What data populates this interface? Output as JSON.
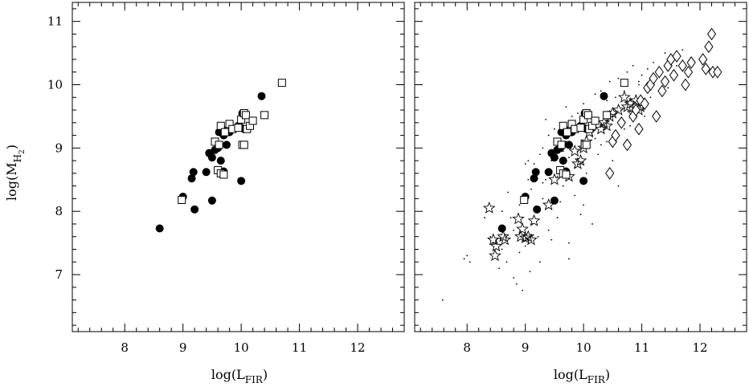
{
  "chart_data": [
    {
      "type": "scatter",
      "title": "",
      "xlabel": "log(L",
      "xlabel_sub": "FIR",
      "xlabel_close": ")",
      "ylabel": "log(M",
      "ylabel_sub": "H",
      "ylabel_subsub": "2",
      "ylabel_close": ")",
      "xlim": [
        7.1,
        12.8
      ],
      "ylim": [
        6.1,
        11.3
      ],
      "xticks": [
        "8",
        "9",
        "10",
        "11",
        "12"
      ],
      "yticks": [
        "7",
        "8",
        "9",
        "10",
        "11"
      ],
      "grid": false,
      "series": [
        {
          "marker": "filled-circle",
          "x": [
            8.6,
            9.0,
            9.15,
            9.18,
            9.2,
            9.4,
            9.45,
            9.5,
            9.5,
            9.55,
            9.6,
            9.62,
            9.65,
            9.67,
            9.7,
            9.7,
            9.75,
            9.8,
            9.95,
            10.0,
            10.0,
            10.02,
            10.05,
            10.35
          ],
          "y": [
            7.73,
            8.23,
            8.52,
            8.62,
            8.03,
            8.62,
            8.92,
            8.17,
            8.85,
            8.97,
            9.0,
            9.25,
            8.8,
            9.3,
            9.2,
            8.63,
            9.05,
            9.25,
            9.35,
            9.32,
            8.48,
            9.55,
            9.3,
            9.82
          ]
        },
        {
          "marker": "open-square",
          "x": [
            8.98,
            9.55,
            9.6,
            9.62,
            9.65,
            9.65,
            9.7,
            9.72,
            9.8,
            9.85,
            9.95,
            10.0,
            10.02,
            10.05,
            10.05,
            10.08,
            10.1,
            10.15,
            10.2,
            10.4,
            10.7
          ],
          "y": [
            8.18,
            9.1,
            8.65,
            9.05,
            8.6,
            9.35,
            8.58,
            9.25,
            9.38,
            9.3,
            9.32,
            9.45,
            9.05,
            9.05,
            9.55,
            9.52,
            9.3,
            9.35,
            9.43,
            9.52,
            10.03
          ]
        }
      ]
    },
    {
      "type": "scatter",
      "title": "",
      "xlabel": "log(L",
      "xlabel_sub": "FIR",
      "xlabel_close": ")",
      "xlim": [
        7.1,
        12.8
      ],
      "ylim": [
        6.1,
        11.3
      ],
      "xticks": [
        "8",
        "9",
        "10",
        "11",
        "12"
      ],
      "grid": false,
      "series": [
        {
          "marker": "dot",
          "x": [
            7.58,
            7.95,
            8.0,
            8.05,
            8.3,
            8.4,
            8.45,
            8.5,
            8.6,
            8.6,
            8.68,
            8.75,
            8.8,
            8.85,
            8.9,
            8.9,
            8.95,
            9.0,
            9.05,
            9.08,
            9.1,
            9.12,
            9.15,
            9.2,
            9.22,
            9.25,
            9.3,
            9.3,
            9.35,
            9.4,
            9.4,
            9.45,
            9.5,
            9.55,
            9.6,
            9.65,
            9.7,
            9.75,
            9.75,
            9.8,
            9.85,
            9.9,
            9.95,
            10.0,
            10.05,
            10.1,
            10.15,
            10.2,
            10.25,
            10.3,
            10.35,
            10.4,
            10.45,
            10.5,
            10.55,
            10.6,
            10.65,
            10.7,
            10.75,
            10.8,
            10.85,
            10.9,
            10.95,
            11.0,
            11.1,
            11.2,
            11.3,
            11.4,
            11.5,
            11.6,
            11.7,
            9.0,
            9.3,
            9.6,
            9.9,
            10.2,
            10.5,
            10.8,
            8.7,
            9.15,
            9.55,
            9.85,
            10.3,
            10.7,
            11.05,
            9.45,
            9.95,
            10.45,
            8.95,
            9.25,
            9.75,
            10.15,
            10.6,
            11.15,
            11.45,
            10.0,
            9.7,
            10.4,
            8.55,
            8.8,
            9.05,
            9.35,
            9.65,
            10.95,
            11.25
          ],
          "y": [
            6.6,
            7.25,
            7.3,
            7.2,
            7.9,
            7.6,
            7.5,
            7.55,
            7.4,
            8.0,
            7.2,
            7.9,
            7.7,
            6.85,
            8.1,
            7.35,
            8.2,
            7.45,
            8.5,
            7.05,
            8.35,
            7.8,
            8.75,
            8.6,
            7.6,
            8.9,
            9.0,
            8.2,
            8.5,
            7.7,
            9.2,
            8.8,
            9.3,
            7.9,
            9.4,
            8.4,
            9.1,
            7.25,
            8.85,
            9.5,
            8.7,
            9.55,
            9.0,
            9.7,
            8.6,
            9.6,
            9.2,
            9.85,
            8.9,
            9.9,
            9.4,
            9.1,
            10.05,
            9.5,
            9.8,
            10.1,
            9.6,
            9.9,
            10.2,
            9.75,
            10.3,
            9.65,
            10.0,
            10.15,
            10.25,
            10.35,
            10.2,
            10.5,
            10.4,
            10.3,
            10.55,
            8.75,
            8.45,
            8.15,
            8.95,
            9.15,
            8.8,
            9.35,
            8.3,
            8.05,
            8.55,
            8.25,
            9.05,
            9.3,
            9.5,
            7.55,
            7.95,
            8.6,
            6.75,
            7.2,
            7.5,
            7.8,
            8.4,
            9.8,
            9.95,
            8.1,
            9.65,
            9.75,
            7.1,
            6.95,
            8.8,
            9.45,
            8.95,
            10.05,
            9.55
          ]
        },
        {
          "marker": "open-star",
          "x": [
            8.38,
            8.45,
            8.48,
            8.5,
            8.62,
            8.65,
            8.88,
            8.92,
            8.95,
            9.0,
            9.05,
            9.1,
            9.15,
            9.4,
            9.5,
            9.75,
            9.85,
            9.9,
            9.95,
            10.0,
            10.05,
            10.1,
            10.3,
            10.35,
            10.4,
            10.45,
            10.5,
            10.6,
            10.7,
            10.75,
            10.8,
            10.85,
            10.9,
            10.95,
            10.98
          ],
          "y": [
            8.05,
            7.55,
            7.3,
            7.45,
            7.6,
            7.55,
            7.88,
            7.6,
            7.72,
            7.58,
            7.6,
            7.55,
            7.85,
            8.1,
            8.5,
            8.55,
            8.95,
            8.75,
            8.8,
            9.0,
            9.1,
            9.25,
            9.3,
            9.4,
            9.35,
            9.5,
            9.55,
            9.6,
            9.8,
            9.65,
            9.7,
            9.55,
            9.75,
            9.6,
            9.65
          ]
        },
        {
          "marker": "open-diamond",
          "x": [
            10.45,
            10.5,
            10.55,
            10.65,
            10.75,
            10.85,
            10.9,
            10.95,
            10.98,
            11.05,
            11.1,
            11.15,
            11.2,
            11.25,
            11.3,
            11.35,
            11.4,
            11.45,
            11.5,
            11.55,
            11.6,
            11.7,
            11.75,
            11.8,
            11.85,
            12.05,
            12.1,
            12.15,
            12.2,
            12.22,
            12.3
          ],
          "y": [
            8.6,
            9.1,
            9.2,
            9.4,
            9.05,
            9.5,
            9.6,
            9.3,
            9.75,
            9.7,
            9.95,
            10.0,
            10.1,
            9.5,
            10.2,
            9.9,
            10.05,
            10.3,
            10.4,
            10.15,
            10.45,
            10.3,
            10.0,
            10.2,
            10.35,
            10.4,
            10.25,
            10.6,
            10.8,
            10.2,
            10.2
          ]
        },
        {
          "marker": "filled-circle",
          "x": [
            8.6,
            9.0,
            9.15,
            9.18,
            9.2,
            9.4,
            9.45,
            9.5,
            9.5,
            9.55,
            9.6,
            9.62,
            9.65,
            9.67,
            9.7,
            9.7,
            9.75,
            9.8,
            9.95,
            10.0,
            10.0,
            10.02,
            10.05,
            10.35
          ],
          "y": [
            7.73,
            8.23,
            8.52,
            8.62,
            8.03,
            8.62,
            8.92,
            8.17,
            8.85,
            8.97,
            9.0,
            9.25,
            8.8,
            9.3,
            9.2,
            8.63,
            9.05,
            9.25,
            9.35,
            9.32,
            8.48,
            9.55,
            9.3,
            9.82
          ]
        },
        {
          "marker": "open-square",
          "x": [
            8.98,
            9.55,
            9.6,
            9.62,
            9.65,
            9.65,
            9.7,
            9.72,
            9.8,
            9.85,
            9.95,
            10.0,
            10.02,
            10.05,
            10.05,
            10.08,
            10.1,
            10.15,
            10.2,
            10.4,
            10.7
          ],
          "y": [
            8.18,
            9.1,
            8.65,
            9.05,
            8.6,
            9.35,
            8.58,
            9.25,
            9.38,
            9.3,
            9.32,
            9.45,
            9.05,
            9.05,
            9.55,
            9.52,
            9.3,
            9.35,
            9.43,
            9.52,
            10.03
          ]
        }
      ]
    }
  ]
}
